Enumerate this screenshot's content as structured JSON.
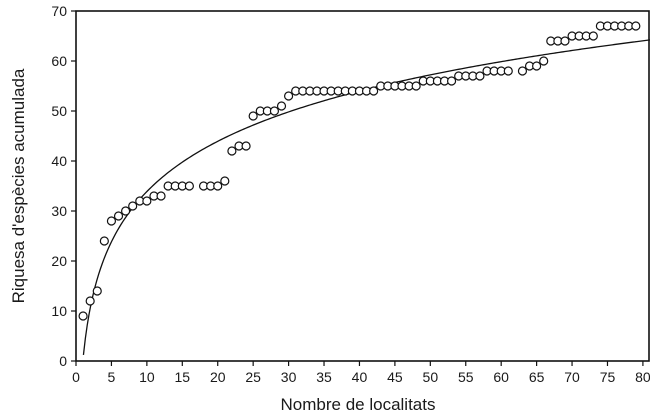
{
  "chart_data": {
    "type": "scatter",
    "xlabel": "Nombre de localitats",
    "ylabel": "Riquesa d'espècies acumulada",
    "xlim": [
      0,
      81
    ],
    "ylim": [
      0,
      70
    ],
    "xticks": [
      0,
      5,
      10,
      15,
      20,
      25,
      30,
      35,
      40,
      45,
      50,
      55,
      60,
      65,
      70,
      75,
      80
    ],
    "yticks": [
      0,
      10,
      20,
      30,
      40,
      50,
      60,
      70
    ],
    "grid": false,
    "legend": "none",
    "series": [
      {
        "points": [
          [
            1,
            9
          ],
          [
            2,
            12
          ],
          [
            3,
            14
          ],
          [
            4,
            24
          ],
          [
            5,
            28
          ],
          [
            6,
            29
          ],
          [
            7,
            30
          ],
          [
            8,
            31
          ],
          [
            9,
            32
          ],
          [
            10,
            32
          ],
          [
            11,
            33
          ],
          [
            12,
            33
          ],
          [
            13,
            35
          ],
          [
            14,
            35
          ],
          [
            15,
            35
          ],
          [
            16,
            35
          ],
          [
            18,
            35
          ],
          [
            19,
            35
          ],
          [
            20,
            35
          ],
          [
            21,
            36
          ],
          [
            22,
            42
          ],
          [
            23,
            43
          ],
          [
            24,
            43
          ],
          [
            25,
            49
          ],
          [
            26,
            50
          ],
          [
            27,
            50
          ],
          [
            28,
            50
          ],
          [
            29,
            51
          ],
          [
            30,
            53
          ],
          [
            31,
            54
          ],
          [
            32,
            54
          ],
          [
            33,
            54
          ],
          [
            34,
            54
          ],
          [
            35,
            54
          ],
          [
            36,
            54
          ],
          [
            37,
            54
          ],
          [
            38,
            54
          ],
          [
            39,
            54
          ],
          [
            40,
            54
          ],
          [
            41,
            54
          ],
          [
            42,
            54
          ],
          [
            43,
            55
          ],
          [
            44,
            55
          ],
          [
            45,
            55
          ],
          [
            46,
            55
          ],
          [
            47,
            55
          ],
          [
            48,
            55
          ],
          [
            49,
            56
          ],
          [
            50,
            56
          ],
          [
            51,
            56
          ],
          [
            52,
            56
          ],
          [
            53,
            56
          ],
          [
            54,
            57
          ],
          [
            55,
            57
          ],
          [
            56,
            57
          ],
          [
            57,
            57
          ],
          [
            58,
            58
          ],
          [
            59,
            58
          ],
          [
            60,
            58
          ],
          [
            61,
            58
          ],
          [
            63,
            58
          ],
          [
            64,
            59
          ],
          [
            65,
            59
          ],
          [
            66,
            60
          ],
          [
            67,
            64
          ],
          [
            68,
            64
          ],
          [
            69,
            64
          ],
          [
            70,
            65
          ],
          [
            71,
            65
          ],
          [
            72,
            65
          ],
          [
            73,
            65
          ],
          [
            74,
            67
          ],
          [
            75,
            67
          ],
          [
            76,
            67
          ],
          [
            77,
            67
          ],
          [
            78,
            67
          ],
          [
            79,
            67
          ]
        ]
      }
    ],
    "fit": {
      "type": "logarithmic",
      "a": 0.5,
      "b": 14.5,
      "x_range": [
        1.05,
        81
      ]
    }
  }
}
